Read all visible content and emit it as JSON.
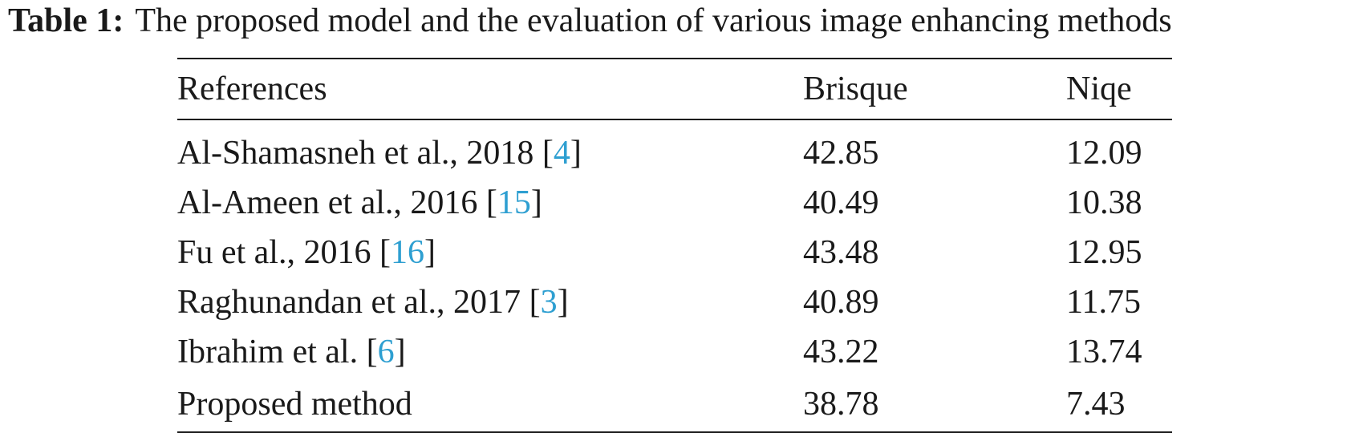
{
  "caption": {
    "label": "Table 1:",
    "text": "The proposed model and the evaluation of various image enhancing methods"
  },
  "table": {
    "headers": [
      "References",
      "Brisque",
      "Niqe"
    ],
    "rows": [
      {
        "ref": "Al-Shamasneh et al., 2018",
        "cite": "4",
        "brisque": "42.85",
        "niqe": "12.09"
      },
      {
        "ref": "Al-Ameen et al., 2016",
        "cite": "15",
        "brisque": "40.49",
        "niqe": "10.38"
      },
      {
        "ref": "Fu et al., 2016",
        "cite": "16",
        "brisque": "43.48",
        "niqe": "12.95"
      },
      {
        "ref": "Raghunandan et al., 2017",
        "cite": "3",
        "brisque": "40.89",
        "niqe": "11.75"
      },
      {
        "ref": "Ibrahim et al.",
        "cite": "6",
        "brisque": "43.22",
        "niqe": "13.74"
      },
      {
        "ref": "Proposed method",
        "cite": "",
        "brisque": "38.78",
        "niqe": "7.43"
      }
    ]
  },
  "colors": {
    "text": "#1a1a1a",
    "citation_link": "#2e9fd1"
  }
}
